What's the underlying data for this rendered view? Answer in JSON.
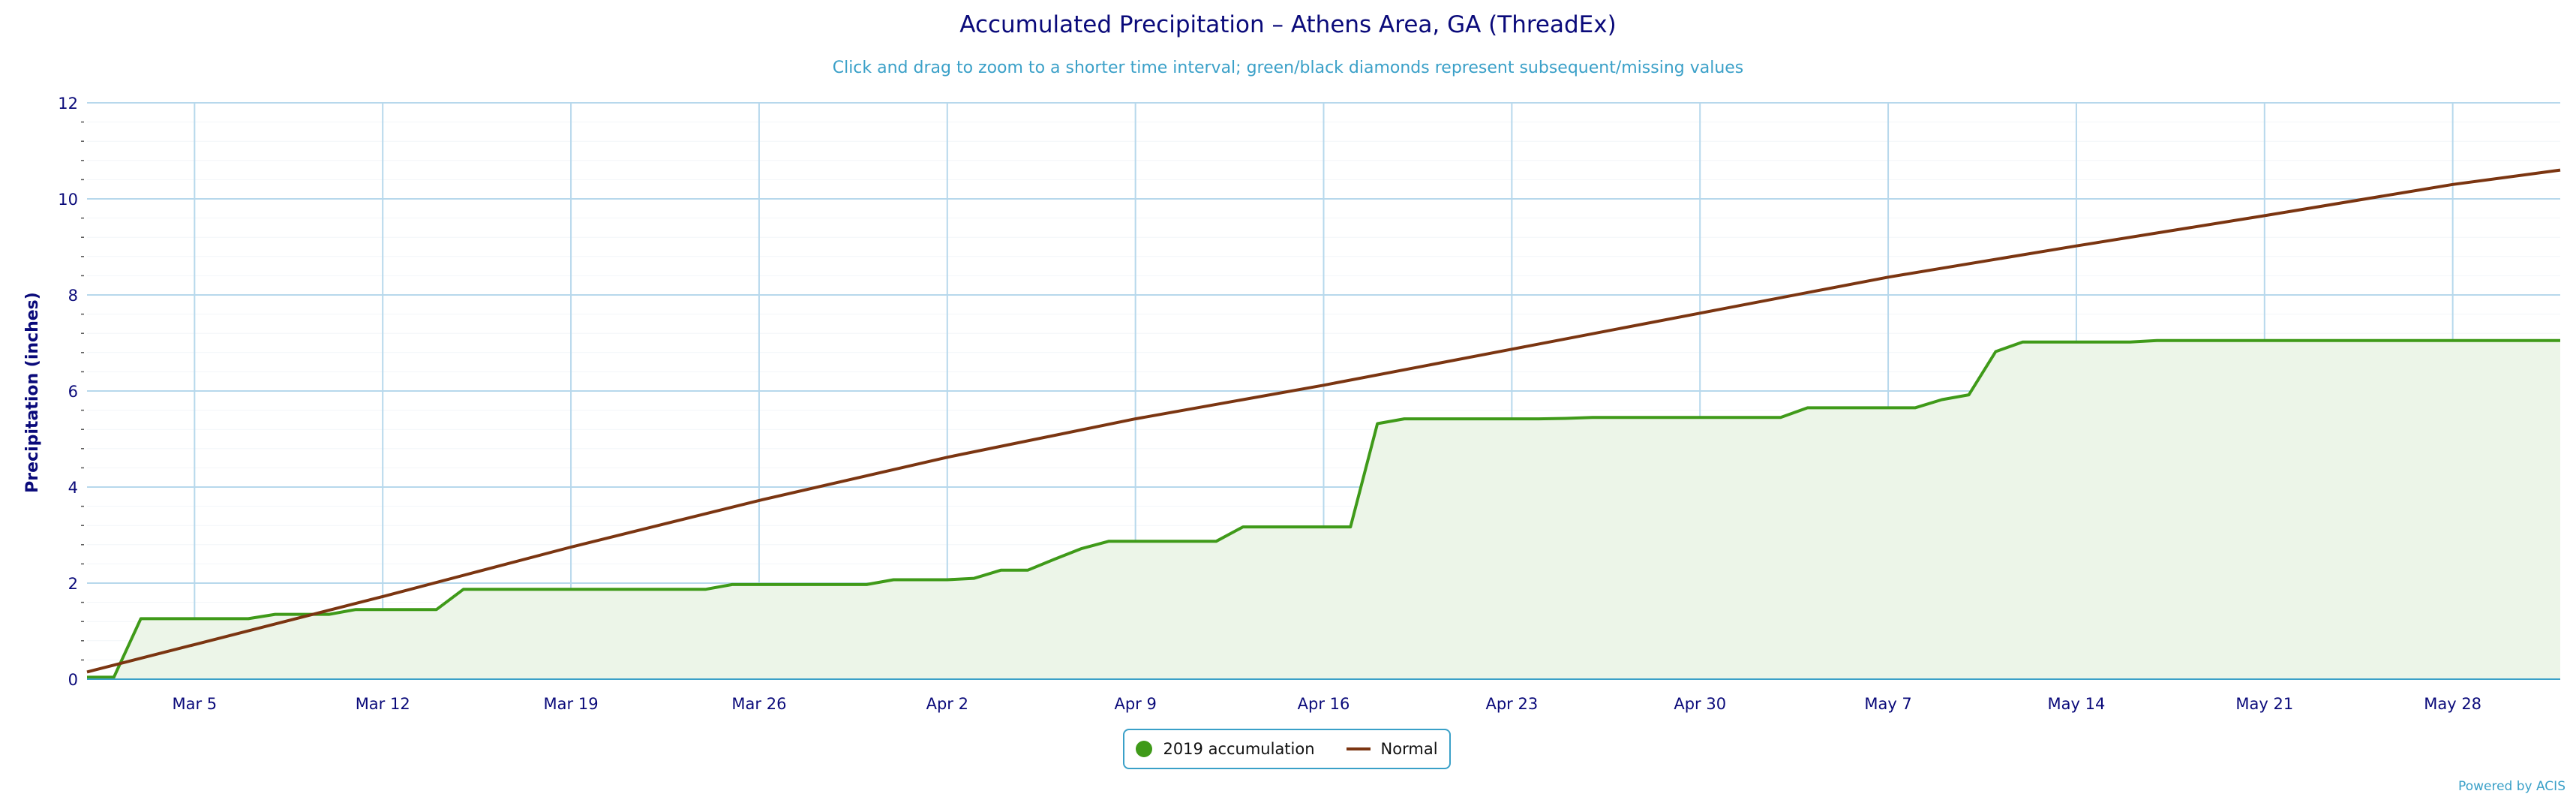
{
  "header": {
    "title": "Accumulated Precipitation – Athens Area, GA (ThreadEx)",
    "subtitle": "Click and drag to zoom to a shorter time interval; green/black diamonds represent subsequent/missing values"
  },
  "legend": {
    "accumulation_label": "2019 accumulation",
    "normal_label": "Normal"
  },
  "credit": "Powered by ACIS",
  "colors": {
    "accumulation": "#3f9a19",
    "accumulation_fill": "#ecf5e8",
    "normal": "#7b3511",
    "grid": "#b7d8ec",
    "axis_text": "#0a0a7a",
    "title": "#0a0a7a",
    "subtitle": "#3aa0c8"
  },
  "chart_data": {
    "type": "line",
    "title": "Accumulated Precipitation – Athens Area, GA (ThreadEx)",
    "ylabel": "Precipitation (inches)",
    "xlabel": "",
    "ylim": [
      0,
      12
    ],
    "yticks": [
      0,
      2,
      4,
      6,
      8,
      10,
      12
    ],
    "xlim": [
      "2019-03-01",
      "2019-06-01"
    ],
    "xticks": [
      {
        "date": "2019-03-05",
        "label": "Mar 5"
      },
      {
        "date": "2019-03-12",
        "label": "Mar 12"
      },
      {
        "date": "2019-03-19",
        "label": "Mar 19"
      },
      {
        "date": "2019-03-26",
        "label": "Mar 26"
      },
      {
        "date": "2019-04-02",
        "label": "Apr 2"
      },
      {
        "date": "2019-04-09",
        "label": "Apr 9"
      },
      {
        "date": "2019-04-16",
        "label": "Apr 16"
      },
      {
        "date": "2019-04-23",
        "label": "Apr 23"
      },
      {
        "date": "2019-04-30",
        "label": "Apr 30"
      },
      {
        "date": "2019-05-07",
        "label": "May 7"
      },
      {
        "date": "2019-05-14",
        "label": "May 14"
      },
      {
        "date": "2019-05-21",
        "label": "May 21"
      },
      {
        "date": "2019-05-28",
        "label": "May 28"
      }
    ],
    "grid": true,
    "legend_position": "bottom-center",
    "series": [
      {
        "name": "2019 accumulation",
        "fill": true,
        "points": [
          [
            "2019-03-01",
            0.04
          ],
          [
            "2019-03-02",
            0.04
          ],
          [
            "2019-03-03",
            1.26
          ],
          [
            "2019-03-04",
            1.26
          ],
          [
            "2019-03-05",
            1.26
          ],
          [
            "2019-03-06",
            1.26
          ],
          [
            "2019-03-07",
            1.26
          ],
          [
            "2019-03-08",
            1.35
          ],
          [
            "2019-03-09",
            1.35
          ],
          [
            "2019-03-10",
            1.35
          ],
          [
            "2019-03-11",
            1.45
          ],
          [
            "2019-03-12",
            1.45
          ],
          [
            "2019-03-13",
            1.45
          ],
          [
            "2019-03-14",
            1.45
          ],
          [
            "2019-03-15",
            1.87
          ],
          [
            "2019-03-16",
            1.87
          ],
          [
            "2019-03-17",
            1.87
          ],
          [
            "2019-03-18",
            1.87
          ],
          [
            "2019-03-19",
            1.87
          ],
          [
            "2019-03-20",
            1.87
          ],
          [
            "2019-03-21",
            1.87
          ],
          [
            "2019-03-22",
            1.87
          ],
          [
            "2019-03-23",
            1.87
          ],
          [
            "2019-03-24",
            1.87
          ],
          [
            "2019-03-25",
            1.97
          ],
          [
            "2019-03-26",
            1.97
          ],
          [
            "2019-03-27",
            1.97
          ],
          [
            "2019-03-28",
            1.97
          ],
          [
            "2019-03-29",
            1.97
          ],
          [
            "2019-03-30",
            1.97
          ],
          [
            "2019-03-31",
            2.07
          ],
          [
            "2019-04-01",
            2.07
          ],
          [
            "2019-04-02",
            2.07
          ],
          [
            "2019-04-03",
            2.1
          ],
          [
            "2019-04-04",
            2.27
          ],
          [
            "2019-04-05",
            2.27
          ],
          [
            "2019-04-06",
            2.5
          ],
          [
            "2019-04-07",
            2.72
          ],
          [
            "2019-04-08",
            2.87
          ],
          [
            "2019-04-09",
            2.87
          ],
          [
            "2019-04-10",
            2.87
          ],
          [
            "2019-04-11",
            2.87
          ],
          [
            "2019-04-12",
            2.87
          ],
          [
            "2019-04-13",
            3.17
          ],
          [
            "2019-04-14",
            3.17
          ],
          [
            "2019-04-15",
            3.17
          ],
          [
            "2019-04-16",
            3.17
          ],
          [
            "2019-04-17",
            3.17
          ],
          [
            "2019-04-18",
            5.32
          ],
          [
            "2019-04-19",
            5.42
          ],
          [
            "2019-04-20",
            5.42
          ],
          [
            "2019-04-21",
            5.42
          ],
          [
            "2019-04-22",
            5.42
          ],
          [
            "2019-04-23",
            5.42
          ],
          [
            "2019-04-24",
            5.42
          ],
          [
            "2019-04-25",
            5.43
          ],
          [
            "2019-04-26",
            5.45
          ],
          [
            "2019-04-27",
            5.45
          ],
          [
            "2019-04-28",
            5.45
          ],
          [
            "2019-04-29",
            5.45
          ],
          [
            "2019-04-30",
            5.45
          ],
          [
            "2019-05-01",
            5.45
          ],
          [
            "2019-05-02",
            5.45
          ],
          [
            "2019-05-03",
            5.45
          ],
          [
            "2019-05-04",
            5.65
          ],
          [
            "2019-05-05",
            5.65
          ],
          [
            "2019-05-06",
            5.65
          ],
          [
            "2019-05-07",
            5.65
          ],
          [
            "2019-05-08",
            5.65
          ],
          [
            "2019-05-09",
            5.82
          ],
          [
            "2019-05-10",
            5.92
          ],
          [
            "2019-05-11",
            6.82
          ],
          [
            "2019-05-12",
            7.02
          ],
          [
            "2019-05-13",
            7.02
          ],
          [
            "2019-05-14",
            7.02
          ],
          [
            "2019-05-15",
            7.02
          ],
          [
            "2019-05-16",
            7.02
          ],
          [
            "2019-05-17",
            7.05
          ],
          [
            "2019-05-18",
            7.05
          ],
          [
            "2019-05-19",
            7.05
          ],
          [
            "2019-05-20",
            7.05
          ],
          [
            "2019-05-21",
            7.05
          ],
          [
            "2019-05-22",
            7.05
          ],
          [
            "2019-05-23",
            7.05
          ],
          [
            "2019-05-24",
            7.05
          ],
          [
            "2019-05-25",
            7.05
          ],
          [
            "2019-05-26",
            7.05
          ],
          [
            "2019-05-27",
            7.05
          ],
          [
            "2019-05-28",
            7.05
          ],
          [
            "2019-05-29",
            7.05
          ],
          [
            "2019-05-30",
            7.05
          ],
          [
            "2019-05-31",
            7.05
          ],
          [
            "2019-06-01",
            7.05
          ]
        ]
      },
      {
        "name": "Normal",
        "fill": false,
        "points": [
          [
            "2019-03-01",
            0.15
          ],
          [
            "2019-03-05",
            0.72
          ],
          [
            "2019-03-12",
            1.72
          ],
          [
            "2019-03-19",
            2.75
          ],
          [
            "2019-03-26",
            3.72
          ],
          [
            "2019-04-02",
            4.62
          ],
          [
            "2019-04-09",
            5.42
          ],
          [
            "2019-04-16",
            6.12
          ],
          [
            "2019-04-23",
            6.87
          ],
          [
            "2019-04-30",
            7.62
          ],
          [
            "2019-05-07",
            8.37
          ],
          [
            "2019-05-14",
            9.02
          ],
          [
            "2019-05-21",
            9.65
          ],
          [
            "2019-05-28",
            10.3
          ],
          [
            "2019-06-01",
            10.6
          ]
        ]
      }
    ]
  }
}
